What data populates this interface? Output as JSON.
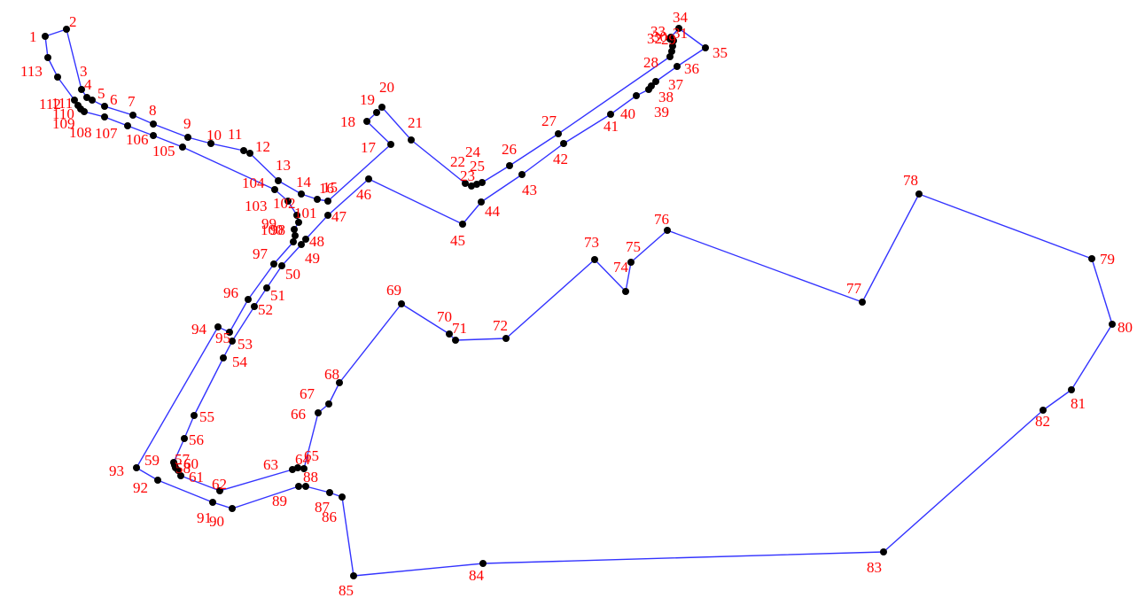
{
  "diagram": {
    "type": "labeled-polygon",
    "colors": {
      "edge": "#3333ff",
      "vertex": "#000000",
      "label": "#ff0000"
    },
    "vertex_labels": [
      "1",
      "2",
      "3",
      "4",
      "5",
      "6",
      "7",
      "8",
      "9",
      "10",
      "11",
      "12",
      "13",
      "14",
      "15",
      "16",
      "17",
      "18",
      "19",
      "20",
      "21",
      "22",
      "23",
      "24",
      "25",
      "26",
      "27",
      "28",
      "29",
      "30",
      "31",
      "32",
      "33",
      "34",
      "35",
      "36",
      "37",
      "38",
      "39",
      "40",
      "41",
      "42",
      "43",
      "44",
      "45",
      "46",
      "47",
      "48",
      "49",
      "50",
      "51",
      "52",
      "53",
      "54",
      "55",
      "56",
      "57",
      "58",
      "59",
      "60",
      "61",
      "62",
      "63",
      "64",
      "65",
      "66",
      "67",
      "68",
      "69",
      "70",
      "71",
      "72",
      "73",
      "74",
      "75",
      "76",
      "77",
      "78",
      "79",
      "80",
      "81",
      "82",
      "83",
      "84",
      "85",
      "86",
      "87",
      "88",
      "89",
      "90",
      "91",
      "92",
      "93",
      "94",
      "95",
      "96",
      "97",
      "98",
      "99",
      "100",
      "101",
      "102",
      "103",
      "104",
      "105",
      "106",
      "107",
      "108",
      "109",
      "110",
      "111",
      "112",
      "113"
    ]
  }
}
